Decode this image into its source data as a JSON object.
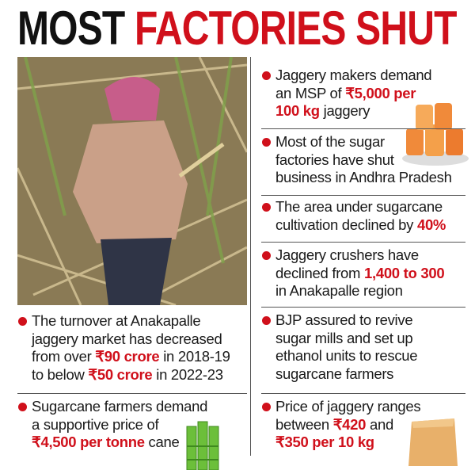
{
  "title": {
    "dark": "MOST",
    "red": "FACTORIES SHUT"
  },
  "left_bullets": [
    {
      "lines": [
        [
          {
            "text": "The turnover at Anakapalle"
          }
        ],
        [
          {
            "text": "jaggery market has decreased"
          }
        ],
        [
          {
            "text": "from over "
          },
          {
            "text": "₹90 crore",
            "highlight": true
          },
          {
            "text": " in 2018-19"
          }
        ],
        [
          {
            "text": "to below "
          },
          {
            "text": "₹50 crore",
            "highlight": true
          },
          {
            "text": " in 2022-23"
          }
        ]
      ]
    },
    {
      "lines": [
        [
          {
            "text": "Sugarcane farmers demand"
          }
        ],
        [
          {
            "text": "a supportive price of"
          }
        ],
        [
          {
            "text": "₹4,500 per tonne",
            "highlight": true
          },
          {
            "text": " cane"
          }
        ]
      ]
    }
  ],
  "right_bullets": [
    {
      "lines": [
        [
          {
            "text": "Jaggery makers demand"
          }
        ],
        [
          {
            "text": "an MSP of "
          },
          {
            "text": "₹5,000 per",
            "highlight": true
          }
        ],
        [
          {
            "text": "100 kg",
            "highlight": true
          },
          {
            "text": " jaggery"
          }
        ]
      ]
    },
    {
      "lines": [
        [
          {
            "text": "Most of the sugar"
          }
        ],
        [
          {
            "text": "factories have shut"
          }
        ],
        [
          {
            "text": "business in Andhra Pradesh"
          }
        ]
      ]
    },
    {
      "lines": [
        [
          {
            "text": "The area under sugarcane"
          }
        ],
        [
          {
            "text": "cultivation declined by "
          },
          {
            "text": "40%",
            "highlight": true
          }
        ]
      ]
    },
    {
      "lines": [
        [
          {
            "text": "Jaggery crushers have"
          }
        ],
        [
          {
            "text": "declined from "
          },
          {
            "text": "1,400 to 300",
            "highlight": true
          }
        ],
        [
          {
            "text": "in Anakapalle region"
          }
        ]
      ]
    },
    {
      "lines": [
        [
          {
            "text": "BJP assured to revive"
          }
        ],
        [
          {
            "text": "sugar mills and set up"
          }
        ],
        [
          {
            "text": "ethanol units to rescue"
          }
        ],
        [
          {
            "text": "sugarcane farmers"
          }
        ]
      ]
    },
    {
      "lines": [
        [
          {
            "text": "Price of jaggery ranges"
          }
        ],
        [
          {
            "text": "between "
          },
          {
            "text": "₹420",
            "highlight": true
          },
          {
            "text": " and"
          }
        ],
        [
          {
            "text": "₹350 per 10 kg",
            "highlight": true
          }
        ]
      ]
    }
  ]
}
